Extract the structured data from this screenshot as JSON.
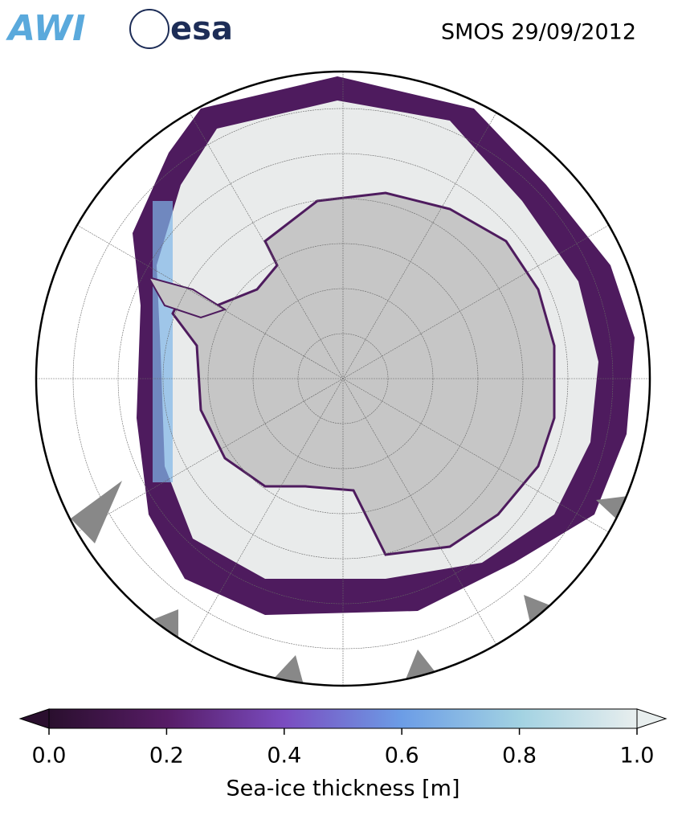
{
  "header": {
    "title": "SMOS 29/09/2012",
    "logos": [
      "AWI",
      "esa"
    ]
  },
  "colorbar": {
    "label": "Sea-ice thickness [m]",
    "lim": [
      0,
      1
    ],
    "ticks": [
      {
        "value": 0,
        "label": "0.0"
      },
      {
        "value": 0.2,
        "label": "0.2"
      },
      {
        "value": 0.4,
        "label": "0.4"
      },
      {
        "value": 0.6,
        "label": "0.6"
      },
      {
        "value": 0.8,
        "label": "0.8"
      },
      {
        "value": 1,
        "label": "1.0"
      }
    ],
    "colors": [
      "#2a0f2e",
      "#571c66",
      "#7a4cc0",
      "#6c9de6",
      "#a2d2e2",
      "#e8eeee"
    ]
  }
}
